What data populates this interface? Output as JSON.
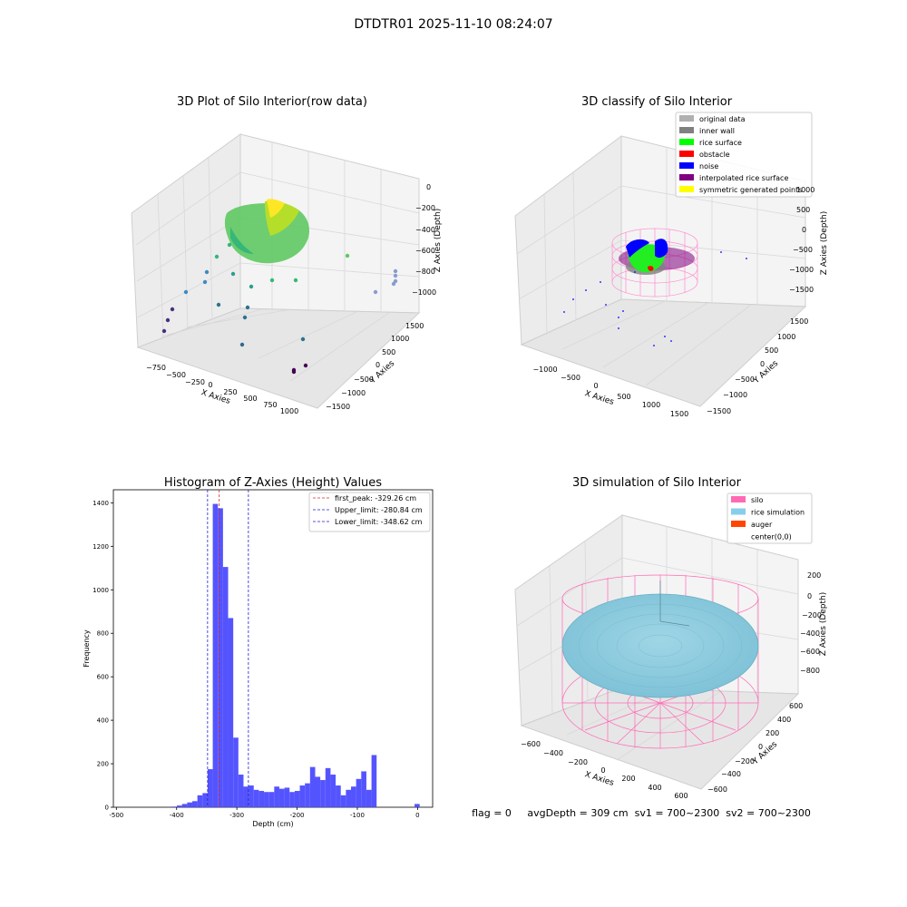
{
  "suptitle": "DTDTR01 2025-11-10 08:24:07",
  "status_line": "flag = 0     avgDepth = 309 cm  sv1 = 700~2300  sv2 = 700~2300",
  "colors": {
    "hist_bar": "#4b4bff",
    "first_peak": "#d62728",
    "limits": "#1f1fcf",
    "pane": "#f2f2f2",
    "grid": "#d8d8d8"
  },
  "chart_data": [
    {
      "type": "scatter",
      "projection": "3d",
      "title": "3D Plot of Silo Interior(row data)",
      "xlabel": "X Axies",
      "ylabel": "Y Axies",
      "zlabel": "Z Axies (Depth)",
      "x_ticks": [
        "−750",
        "−500",
        "−250",
        "0",
        "250",
        "500",
        "750",
        "1000"
      ],
      "y_ticks": [
        "1500",
        "1000",
        "500",
        "0",
        "−500",
        "−1000",
        "−1500"
      ],
      "z_ticks": [
        "0",
        "−200",
        "−400",
        "−600",
        "−800",
        "−1000"
      ],
      "colormap": "viridis",
      "grid": true
    },
    {
      "type": "scatter",
      "projection": "3d",
      "title": "3D classify of Silo Interior",
      "xlabel": "X Axies",
      "ylabel": "Y Axies",
      "zlabel": "Z Axies (Depth)",
      "x_ticks": [
        "−1000",
        "−500",
        "0",
        "500",
        "1000",
        "1500"
      ],
      "y_ticks": [
        "1500",
        "1000",
        "500",
        "0",
        "−500",
        "−1000",
        "−1500"
      ],
      "z_ticks": [
        "1000",
        "500",
        "0",
        "−500",
        "−1000",
        "−1500"
      ],
      "legend_position": "top-right",
      "legend": [
        {
          "label": "original data",
          "color": "#b0b0b0"
        },
        {
          "label": "inner wall",
          "color": "#808080"
        },
        {
          "label": "rice surface",
          "color": "#00ff00"
        },
        {
          "label": "obstacle",
          "color": "#ff0000"
        },
        {
          "label": "noise",
          "color": "#0000ff"
        },
        {
          "label": "interpolated rice surface",
          "color": "#800080"
        },
        {
          "label": "symmetric generated points",
          "color": "#ffff00"
        }
      ],
      "grid": true
    },
    {
      "type": "bar",
      "title": "Histogram of Z-Axies (Height) Values",
      "xlabel": "Depth (cm)",
      "ylabel": "Frequency",
      "xlim": [
        -505,
        25
      ],
      "ylim": [
        0,
        1460
      ],
      "x_ticks": [
        -500,
        -400,
        -300,
        -200,
        -100,
        0
      ],
      "y_ticks": [
        0,
        200,
        400,
        600,
        800,
        1000,
        1200,
        1400
      ],
      "bin_width": 8.5,
      "bins": [
        [
          -408,
          3
        ],
        [
          -399.5,
          8
        ],
        [
          -391,
          15
        ],
        [
          -382.5,
          22
        ],
        [
          -374,
          28
        ],
        [
          -365.5,
          55
        ],
        [
          -357,
          65
        ],
        [
          -348.5,
          175
        ],
        [
          -340,
          1395
        ],
        [
          -331.5,
          1375
        ],
        [
          -323,
          1105
        ],
        [
          -314.5,
          870
        ],
        [
          -306,
          320
        ],
        [
          -297.5,
          150
        ],
        [
          -289,
          95
        ],
        [
          -280.5,
          100
        ],
        [
          -272,
          80
        ],
        [
          -263.5,
          75
        ],
        [
          -255,
          70
        ],
        [
          -246.5,
          70
        ],
        [
          -238,
          95
        ],
        [
          -229.5,
          85
        ],
        [
          -221,
          90
        ],
        [
          -212.5,
          70
        ],
        [
          -204,
          75
        ],
        [
          -195.5,
          100
        ],
        [
          -187,
          110
        ],
        [
          -178.5,
          185
        ],
        [
          -170,
          140
        ],
        [
          -161.5,
          125
        ],
        [
          -153,
          180
        ],
        [
          -144.5,
          150
        ],
        [
          -136,
          100
        ],
        [
          -127.5,
          55
        ],
        [
          -119,
          80
        ],
        [
          -110.5,
          95
        ],
        [
          -102,
          130
        ],
        [
          -93.5,
          165
        ],
        [
          -85,
          80
        ],
        [
          -76.5,
          240
        ],
        [
          -5,
          15
        ]
      ],
      "vlines": [
        {
          "x": -329.26,
          "label": "first_peak: -329.26 cm",
          "color": "#d62728"
        },
        {
          "x": -280.84,
          "label": "Upper_limit: -280.84 cm",
          "color": "#1f1fcf"
        },
        {
          "x": -348.62,
          "label": "Lower_limit: -348.62 cm",
          "color": "#1f1fcf"
        }
      ],
      "legend_position": "top-right"
    },
    {
      "type": "scatter",
      "projection": "3d",
      "title": "3D simulation of Silo Interior",
      "xlabel": "X Axies",
      "ylabel": "Y Axies",
      "zlabel": "Z Axies (Depth)",
      "x_ticks": [
        "−600",
        "−400",
        "−200",
        "0",
        "200",
        "400",
        "600"
      ],
      "y_ticks": [
        "600",
        "400",
        "200",
        "0",
        "−200",
        "−400",
        "−600"
      ],
      "z_ticks": [
        "200",
        "0",
        "−200",
        "−400",
        "−600",
        "−800"
      ],
      "legend_position": "top-right",
      "legend": [
        {
          "label": "silo",
          "color": "#ff69b4"
        },
        {
          "label": "rice simulation",
          "color": "#87ceeb"
        },
        {
          "label": "auger",
          "color": "#ff4500"
        },
        {
          "label": "center(0,0)",
          "color": ""
        }
      ],
      "grid": true
    }
  ]
}
